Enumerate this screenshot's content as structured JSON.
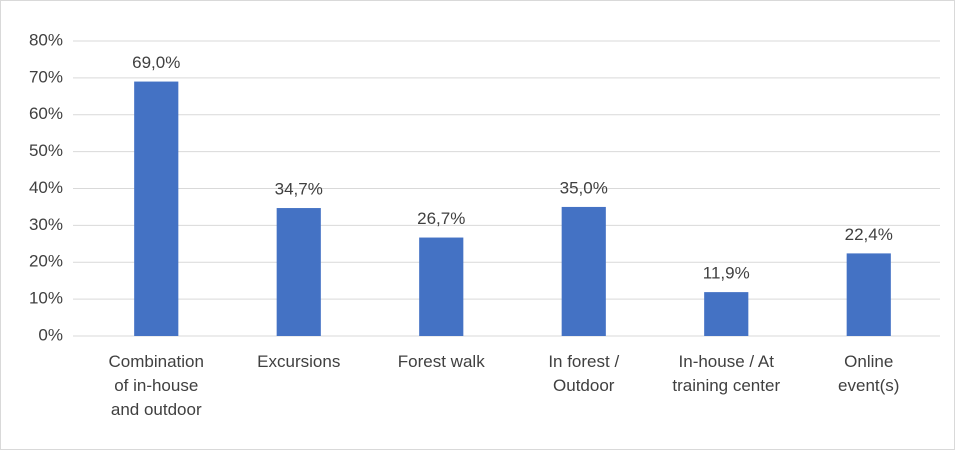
{
  "chart_data": {
    "type": "bar",
    "categories": [
      "Combination of in-house and outdoor",
      "Excursions",
      "Forest walk",
      "In forest / Outdoor",
      "In-house / At training center",
      "Online event(s)"
    ],
    "values": [
      69.0,
      34.7,
      26.7,
      35.0,
      11.9,
      22.4
    ],
    "value_labels": [
      "69,0%",
      "34,7%",
      "26,7%",
      "35,0%",
      "11,9%",
      "22,4%"
    ],
    "color": "#4472c4",
    "ylim": [
      0,
      80
    ],
    "yticks": [
      {
        "value": 0,
        "label": "0%"
      },
      {
        "value": 10,
        "label": "10%"
      },
      {
        "value": 20,
        "label": "20%"
      },
      {
        "value": 30,
        "label": "30%"
      },
      {
        "value": 40,
        "label": "40%"
      },
      {
        "value": 50,
        "label": "50%"
      },
      {
        "value": 60,
        "label": "60%"
      },
      {
        "value": 70,
        "label": "70%"
      },
      {
        "value": 80,
        "label": "80%"
      }
    ],
    "grid": true
  }
}
